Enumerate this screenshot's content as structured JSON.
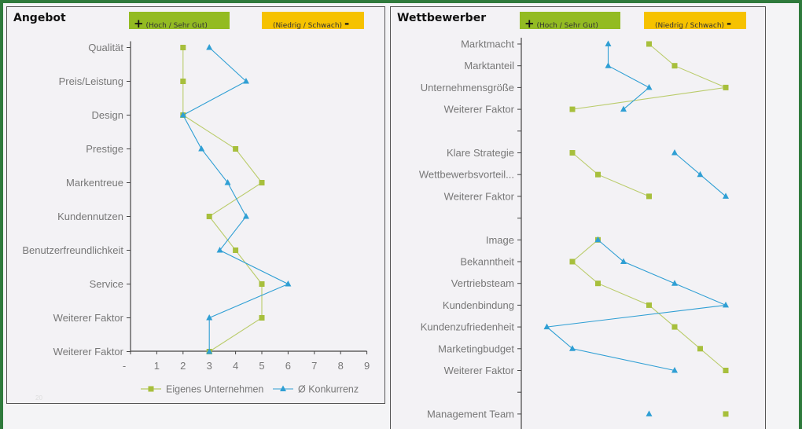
{
  "colors": {
    "own": "#a7bf3c",
    "competitor": "#2f9fd4",
    "frame": "#2f7a3c",
    "plus_badge": "#93bb22",
    "minus_badge": "#f6c200"
  },
  "badges": {
    "plus_sign": "+",
    "plus_text": "(Hoch / Sehr Gut)",
    "minus_text": "(Niedrig / Schwach)",
    "minus_sign": "-"
  },
  "watermark": "20",
  "chart_data": [
    {
      "type": "line",
      "title": "Angebot",
      "orientation": "horizontal-values",
      "categories": [
        "Qualität",
        "Preis/Leistung",
        "Design",
        "Prestige",
        "Markentreue",
        "Kundennutzen",
        "Benutzerfreundlichkeit",
        "Service",
        "Weiterer Faktor",
        "Weiterer Faktor"
      ],
      "xlim": [
        0,
        9
      ],
      "xticks": [
        "-",
        "1",
        "2",
        "3",
        "4",
        "5",
        "6",
        "7",
        "8",
        "9"
      ],
      "legend": "bottom",
      "grid": false,
      "series": [
        {
          "name": "Eigenes Unternehmen",
          "marker": "square",
          "values": [
            2,
            2,
            2,
            4,
            5,
            3,
            4,
            5,
            5,
            3
          ]
        },
        {
          "name": "Ø Konkurrenz",
          "marker": "triangle",
          "values": [
            3,
            4.4,
            2,
            2.7,
            3.7,
            4.4,
            3.4,
            6,
            3,
            3
          ]
        }
      ]
    },
    {
      "type": "line",
      "title": "Wettbewerber",
      "orientation": "horizontal-values",
      "categories": [
        "Marktmacht",
        "Marktanteil",
        "Unternehmensgröße",
        "Weiterer Faktor",
        "",
        "Klare Strategie",
        "Wettbewerbsvorteil...",
        "Weiterer Faktor",
        "",
        "Image",
        "Bekanntheit",
        "Vertriebsteam",
        "Kundenbindung",
        "Kundenzufriedenheit",
        "Marketingbudget",
        "Weiterer Faktor",
        "",
        "Management Team"
      ],
      "xlim": [
        0,
        9
      ],
      "grid": false,
      "series": [
        {
          "marker": "square",
          "values": [
            5,
            6,
            8,
            2,
            null,
            2,
            3,
            5,
            null,
            3,
            2,
            3,
            5,
            6,
            7,
            8,
            null,
            8
          ]
        },
        {
          "marker": "triangle",
          "values": [
            3.4,
            3.4,
            5,
            4,
            null,
            6,
            7,
            8,
            null,
            3,
            4,
            6,
            8,
            1,
            2,
            6,
            null,
            5
          ]
        }
      ]
    }
  ]
}
